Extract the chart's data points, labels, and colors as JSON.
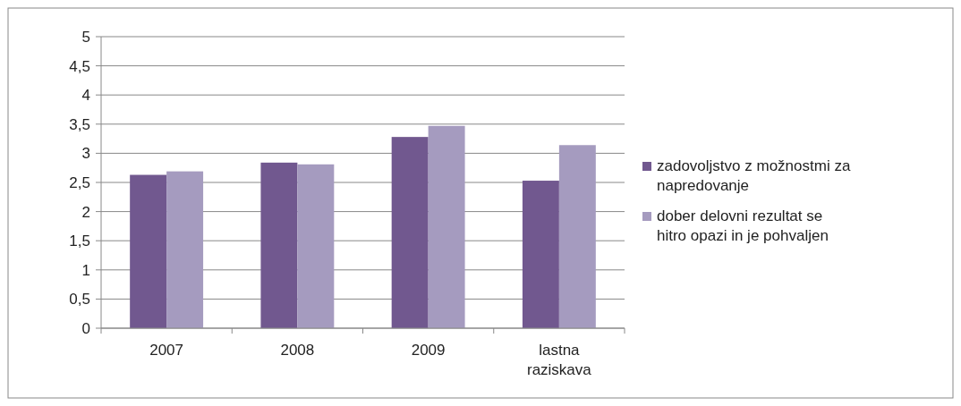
{
  "chart_data": {
    "type": "bar",
    "categories": [
      "2007",
      "2008",
      "2009",
      "lastna raziskava"
    ],
    "series": [
      {
        "name": "zadovoljstvo z možnostmi za napredovanje",
        "color": "#71588f",
        "values": [
          2.63,
          2.84,
          3.28,
          2.53
        ]
      },
      {
        "name": "dober delovni rezultat se hitro opazi in je pohvaljen",
        "color": "#a59bbf",
        "values": [
          2.69,
          2.81,
          3.47,
          3.14
        ]
      }
    ],
    "ylim": [
      0,
      5
    ],
    "yticks": [
      0,
      {
        "value": 0.5,
        "label": "0,5"
      },
      1,
      {
        "value": 1.5,
        "label": "1,5"
      },
      2,
      {
        "value": 2.5,
        "label": "2,5"
      },
      3,
      {
        "value": 3.5,
        "label": "3,5"
      },
      4,
      {
        "value": 4.5,
        "label": "4,5"
      },
      5
    ],
    "grid": "y",
    "legend": "right"
  }
}
